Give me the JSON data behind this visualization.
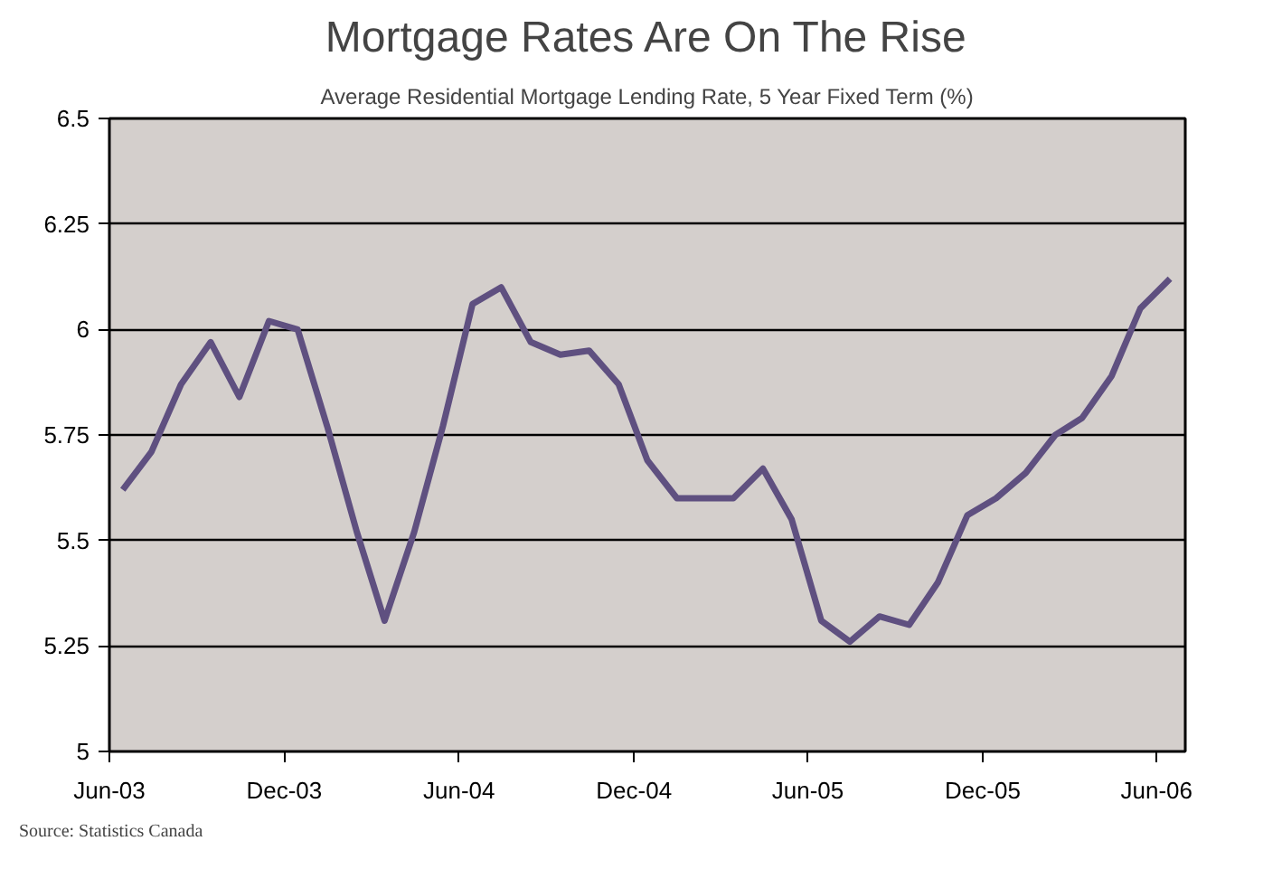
{
  "chart_data": {
    "type": "line",
    "title": "Mortgage Rates Are On The Rise",
    "subtitle": "Average Residential Mortgage Lending Rate, 5 Year Fixed Term (%)",
    "x": [
      "2003-06-15",
      "2003-07-15",
      "2003-08-15",
      "2003-09-15",
      "2003-10-15",
      "2003-11-15",
      "2003-12-15",
      "2004-01-15",
      "2004-02-15",
      "2004-03-15",
      "2004-04-15",
      "2004-05-15",
      "2004-06-15",
      "2004-07-15",
      "2004-08-15",
      "2004-09-15",
      "2004-10-15",
      "2004-11-15",
      "2004-12-15",
      "2005-01-15",
      "2005-02-15",
      "2005-03-15",
      "2005-04-15",
      "2005-05-15",
      "2005-06-15",
      "2005-07-15",
      "2005-08-15",
      "2005-09-15",
      "2005-10-15",
      "2005-11-15",
      "2005-12-15",
      "2006-01-15",
      "2006-02-15",
      "2006-03-15",
      "2006-04-15",
      "2006-05-15",
      "2006-06-15"
    ],
    "series": [
      {
        "color": "#5f5080",
        "values": [
          5.62,
          5.71,
          5.87,
          5.97,
          5.84,
          6.02,
          6.0,
          5.77,
          5.52,
          5.31,
          5.52,
          5.77,
          6.06,
          6.1,
          5.97,
          5.94,
          5.95,
          5.87,
          5.69,
          5.6,
          5.6,
          5.6,
          5.67,
          5.55,
          5.31,
          5.26,
          5.32,
          5.3,
          5.4,
          5.56,
          5.6,
          5.66,
          5.75,
          5.79,
          5.89,
          6.05,
          6.12
        ]
      }
    ],
    "xlim": [
      "2003-06-01",
      "2006-07-01"
    ],
    "xticks": [
      {
        "value": "2003-06-01",
        "label": "Jun-03"
      },
      {
        "value": "2003-12-01",
        "label": "Dec-03"
      },
      {
        "value": "2004-06-01",
        "label": "Jun-04"
      },
      {
        "value": "2004-12-01",
        "label": "Dec-04"
      },
      {
        "value": "2005-06-01",
        "label": "Jun-05"
      },
      {
        "value": "2005-12-01",
        "label": "Dec-05"
      },
      {
        "value": "2006-06-01",
        "label": "Jun-06"
      }
    ],
    "ylim": [
      5,
      6.5
    ],
    "yticks": [
      5,
      5.25,
      5.5,
      5.75,
      6,
      6.25,
      6.5
    ],
    "grid": "y",
    "marker": "none",
    "line_style": "solid",
    "annotations": [
      "Source: Statistics Canada"
    ]
  }
}
